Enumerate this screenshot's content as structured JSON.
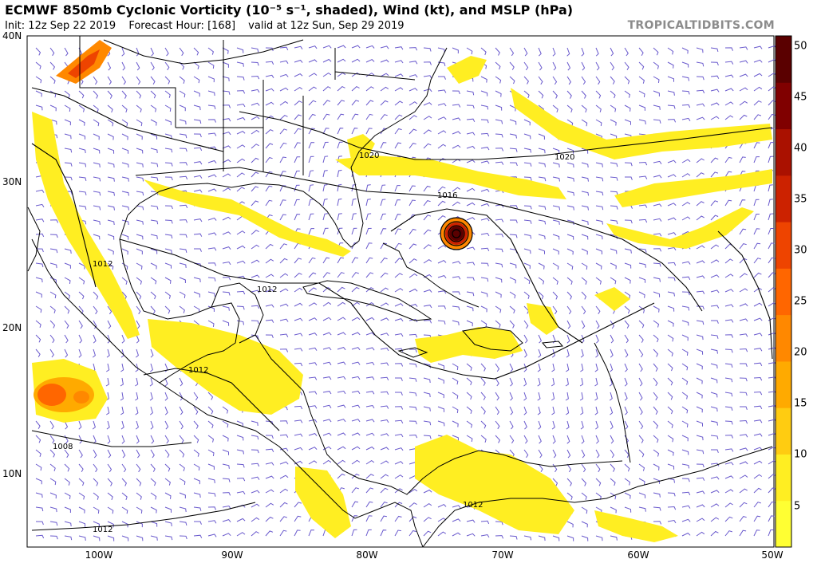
{
  "header": {
    "title": "ECMWF 850mb Cyclonic Vorticity (10⁻⁵ s⁻¹, shaded), Wind (kt), and MSLP (hPa)",
    "init": "Init: 12z Sep 22 2019",
    "forecast_hour": "Forecast Hour: [168]",
    "valid": "valid at 12z Sun, Sep 29 2019",
    "brand": "TROPICALTIDBITS.COM"
  },
  "axes": {
    "lat_labels": [
      "40N",
      "30N",
      "20N",
      "10N"
    ],
    "lon_labels": [
      "100W",
      "90W",
      "80W",
      "70W",
      "60W",
      "50W"
    ]
  },
  "colorbar": {
    "ticks": [
      "5",
      "10",
      "15",
      "20",
      "25",
      "30",
      "35",
      "40",
      "45",
      "50"
    ],
    "colors": [
      "#ffff33",
      "#ffee22",
      "#ffcc11",
      "#ffaa00",
      "#ff8800",
      "#ff6600",
      "#ee4400",
      "#cc2200",
      "#aa1100",
      "#800000",
      "#5a0000"
    ]
  },
  "isobar_labels": [
    "1020",
    "1020",
    "1016",
    "1012",
    "1012",
    "1012",
    "1012",
    "1008",
    "1012"
  ],
  "theme": {
    "vorticity_yellow": "#ffee22",
    "wind_barb": "#6a5acd",
    "coast": "#000000"
  }
}
